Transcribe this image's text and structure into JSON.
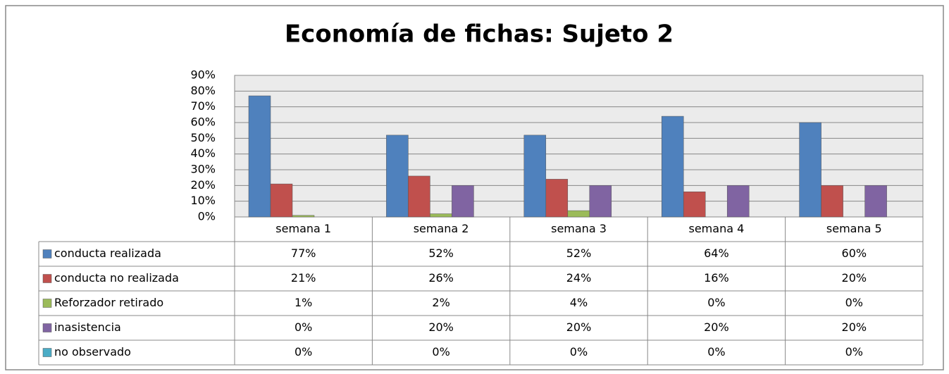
{
  "chart_data": {
    "type": "bar",
    "title": "Economía de fichas: Sujeto 2",
    "categories": [
      "semana 1",
      "semana 2",
      "semana 3",
      "semana 4",
      "semana 5"
    ],
    "series": [
      {
        "name": "conducta realizada",
        "color": "#4f81bd",
        "values": [
          77,
          52,
          52,
          64,
          60
        ],
        "value_labels": [
          "77%",
          "52%",
          "52%",
          "64%",
          "60%"
        ]
      },
      {
        "name": "conducta no realizada",
        "color": "#c0504d",
        "values": [
          21,
          26,
          24,
          16,
          20
        ],
        "value_labels": [
          "21%",
          "26%",
          "24%",
          "16%",
          "20%"
        ]
      },
      {
        "name": "Reforzador retirado",
        "color": "#9bbb59",
        "values": [
          1,
          2,
          4,
          0,
          0
        ],
        "value_labels": [
          "1%",
          "2%",
          "4%",
          "0%",
          "0%"
        ]
      },
      {
        "name": "inasistencia",
        "color": "#8064a2",
        "values": [
          0,
          20,
          20,
          20,
          20
        ],
        "value_labels": [
          "0%",
          "20%",
          "20%",
          "20%",
          "20%"
        ]
      },
      {
        "name": "no observado",
        "color": "#4bacc6",
        "values": [
          0,
          0,
          0,
          0,
          0
        ],
        "value_labels": [
          "0%",
          "0%",
          "0%",
          "0%",
          "0%"
        ]
      }
    ],
    "ylim": [
      0,
      90
    ],
    "yticks": [
      {
        "value": 0,
        "label": "0%"
      },
      {
        "value": 10,
        "label": "10%"
      },
      {
        "value": 20,
        "label": "20%"
      },
      {
        "value": 30,
        "label": "30%"
      },
      {
        "value": 40,
        "label": "40%"
      },
      {
        "value": 50,
        "label": "50%"
      },
      {
        "value": 60,
        "label": "60%"
      },
      {
        "value": 70,
        "label": "70%"
      },
      {
        "value": 80,
        "label": "80%"
      },
      {
        "value": 90,
        "label": "90%"
      }
    ],
    "grid": true
  }
}
